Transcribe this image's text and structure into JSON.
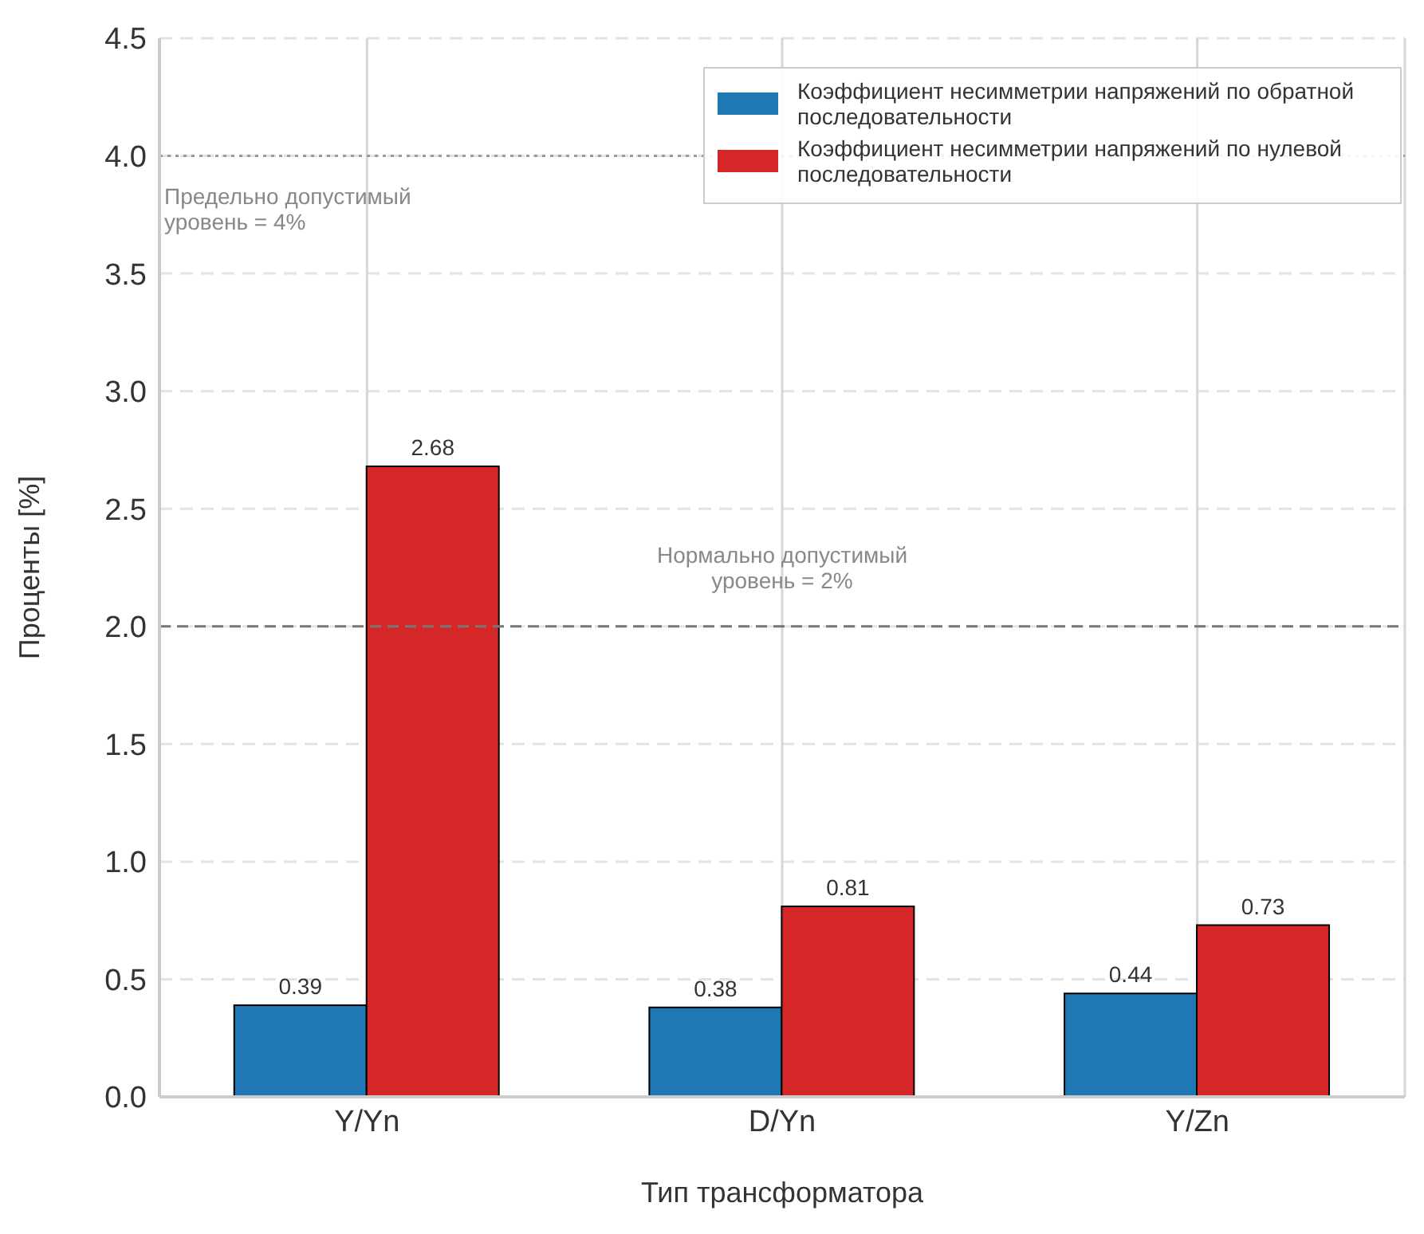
{
  "chart_data": {
    "type": "bar",
    "xlabel": "Тип трансформатора",
    "ylabel": "Проценты [%]",
    "categories": [
      "Y/Yn",
      "D/Yn",
      "Y/Zn"
    ],
    "series": [
      {
        "name": "Коэффициент несимметрии напряжений по обратной последовательности",
        "color": "#1f77b4",
        "values": [
          0.39,
          0.38,
          0.44
        ]
      },
      {
        "name": "Коэффициент несимметрии напряжений по нулевой последовательности",
        "color": "#d62728",
        "values": [
          2.68,
          0.81,
          0.73
        ]
      }
    ],
    "ylim": [
      0,
      4.5
    ],
    "yticks": [
      {
        "value": 0,
        "label": "0.0"
      },
      {
        "value": 0.5,
        "label": "0.5"
      },
      {
        "value": 1,
        "label": "1.0"
      },
      {
        "value": 1.5,
        "label": "1.5"
      },
      {
        "value": 2,
        "label": "2.0"
      },
      {
        "value": 2.5,
        "label": "2.5"
      },
      {
        "value": 3,
        "label": "3.0"
      },
      {
        "value": 3.5,
        "label": "3.5"
      },
      {
        "value": 4,
        "label": "4.0"
      },
      {
        "value": 4.5,
        "label": "4.5"
      }
    ],
    "ref_lines": [
      {
        "axis": "y",
        "value": 4,
        "label": "Предельно допустимый\nуровень = 4%",
        "color": "#999999",
        "line_style": "dotted"
      },
      {
        "axis": "y",
        "value": 2,
        "label": "Нормально допустимый\nуровень = 2%",
        "color": "#777777",
        "line_style": "dashed"
      }
    ],
    "grid": true,
    "legend": "top right",
    "data_labels": true
  }
}
